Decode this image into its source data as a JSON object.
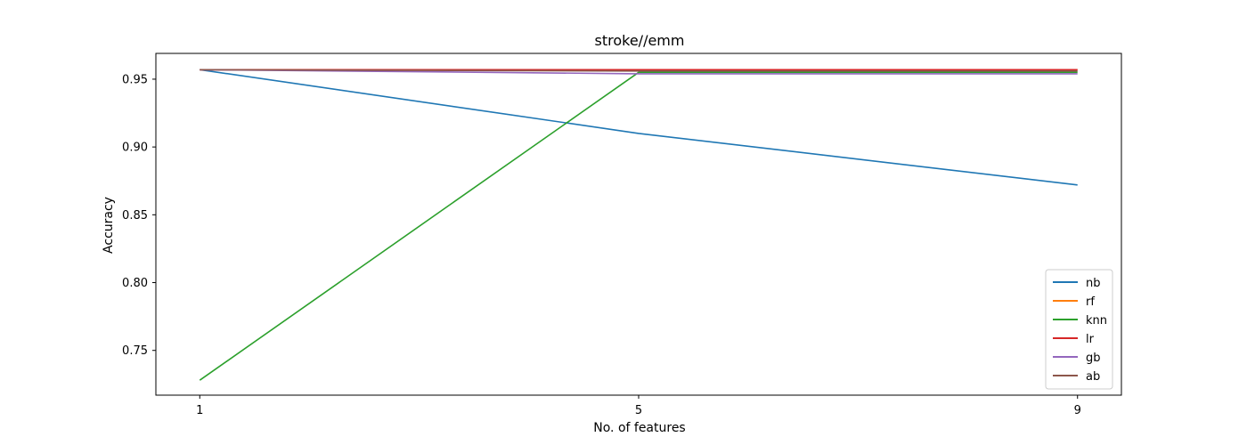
{
  "chart_data": {
    "type": "line",
    "title": "stroke//emm",
    "xlabel": "No. of features",
    "ylabel": "Accuracy",
    "x": [
      1,
      5,
      9
    ],
    "xlim": [
      0.6,
      9.4
    ],
    "ylim": [
      0.717,
      0.969
    ],
    "xticks": [
      1,
      5,
      9
    ],
    "yticks": [
      0.75,
      0.8,
      0.85,
      0.9,
      0.95
    ],
    "ytick_labels": [
      "0.75",
      "0.80",
      "0.85",
      "0.90",
      "0.95"
    ],
    "grid": false,
    "legend_position": "lower right",
    "series": [
      {
        "name": "nb",
        "color": "#1f77b4",
        "values": [
          0.957,
          0.91,
          0.872
        ]
      },
      {
        "name": "rf",
        "color": "#ff7f0e",
        "values": [
          0.957,
          0.957,
          0.957
        ]
      },
      {
        "name": "knn",
        "color": "#2ca02c",
        "values": [
          0.728,
          0.955,
          0.955
        ]
      },
      {
        "name": "lr",
        "color": "#d62728",
        "values": [
          0.957,
          0.957,
          0.957
        ]
      },
      {
        "name": "gb",
        "color": "#9467bd",
        "values": [
          0.957,
          0.954,
          0.954
        ]
      },
      {
        "name": "ab",
        "color": "#8c564b",
        "values": [
          0.957,
          0.956,
          0.956
        ]
      }
    ]
  }
}
